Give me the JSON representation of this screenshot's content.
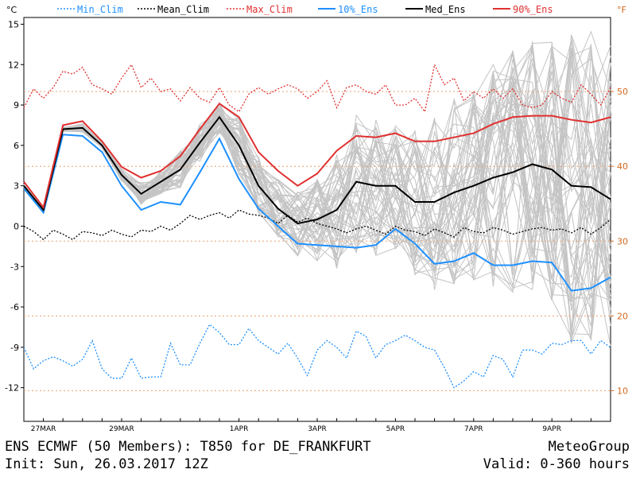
{
  "chart_data": {
    "type": "line",
    "title": "ENS ECMWF (50 Members): T850 for DE_FRANKFURT",
    "subtitle": "Init: Sun, 26.03.2017 12Z",
    "valid": "Valid: 0-360 hours",
    "brand": "MeteoGroup",
    "y_unit_left": "°C",
    "y_unit_right": "°F",
    "ylim": [
      -14.5,
      15.5
    ],
    "yticks_left": [
      15,
      12,
      9,
      6,
      3,
      0,
      -3,
      -6,
      -9,
      -12
    ],
    "yticks_right": [
      50,
      40,
      30,
      20,
      10
    ],
    "x_range_hours": [
      0,
      360
    ],
    "x_step_hours": 12,
    "xticks": [
      {
        "label": "27MAR",
        "hour": 12
      },
      {
        "label": "29MAR",
        "hour": 60
      },
      {
        "label": "1APR",
        "hour": 132
      },
      {
        "label": "3APR",
        "hour": 180
      },
      {
        "label": "5APR",
        "hour": 228
      },
      {
        "label": "7APR",
        "hour": 276
      },
      {
        "label": "9APR",
        "hour": 324
      }
    ],
    "legend_position": "top",
    "series": [
      {
        "name": "Min_Clim",
        "style": "dotted",
        "color": "#1e90ff",
        "values": [
          -9.0,
          -10.6,
          -10.0,
          -9.7,
          -10.0,
          -10.4,
          -9.9,
          -8.5,
          -10.6,
          -11.3,
          -11.3,
          -9.8,
          -11.3,
          -11.2,
          -11.2,
          -8.7,
          -10.3,
          -10.3,
          -8.7,
          -7.3,
          -7.9,
          -8.8,
          -8.8,
          -7.6,
          -8.5,
          -9.0,
          -9.5,
          -8.7,
          -9.8,
          -11.1,
          -9.2,
          -8.5,
          -9.0,
          -9.8,
          -7.8,
          -8.2,
          -9.8,
          -8.8,
          -8.5,
          -8.1,
          -8.5,
          -9.0,
          -9.2,
          -10.5,
          -12.0,
          -11.5,
          -10.8,
          -11.2,
          -9.6,
          -9.9,
          -11.2,
          -9.2,
          -9.2,
          -9.5,
          -8.7,
          -8.8,
          -8.5,
          -8.5,
          -9.5,
          -8.5,
          -9.0
        ]
      },
      {
        "name": "Mean_Clim",
        "style": "dotted",
        "color": "#000000",
        "values": [
          0.0,
          -0.4,
          -1.0,
          -0.3,
          -0.6,
          -1.0,
          -0.4,
          -0.5,
          -0.7,
          -0.3,
          -0.6,
          -0.8,
          -0.3,
          -0.4,
          0.0,
          -0.3,
          0.2,
          0.8,
          0.5,
          0.8,
          1.0,
          0.6,
          1.2,
          0.9,
          0.8,
          0.6,
          0.2,
          0.8,
          0.3,
          0.6,
          0.2,
          0.0,
          -0.2,
          -0.5,
          -0.2,
          0.0,
          -0.3,
          -0.6,
          0.0,
          -0.3,
          -0.4,
          -0.7,
          -0.2,
          -0.5,
          -0.8,
          -0.1,
          -0.4,
          -0.5,
          -0.1,
          -0.3,
          -0.6,
          -0.4,
          -0.2,
          -0.1,
          -0.3,
          -0.2,
          -0.5,
          -0.1,
          -0.6,
          -0.1,
          0.5
        ]
      },
      {
        "name": "Max_Clim",
        "style": "dotted",
        "color": "#e03030",
        "values": [
          8.8,
          10.2,
          9.5,
          10.3,
          11.5,
          11.3,
          11.8,
          10.5,
          10.2,
          9.8,
          11.0,
          12.0,
          10.3,
          11.0,
          10.0,
          10.2,
          9.3,
          10.3,
          9.5,
          9.2,
          10.3,
          9.0,
          8.5,
          9.8,
          10.3,
          9.8,
          10.2,
          10.5,
          10.2,
          9.5,
          10.0,
          10.8,
          8.8,
          10.3,
          10.5,
          10.0,
          9.8,
          10.5,
          9.0,
          9.0,
          9.5,
          8.5,
          12.0,
          10.5,
          11.0,
          9.3,
          10.0,
          9.5,
          10.2,
          9.5,
          10.2,
          9.0,
          8.8,
          9.0,
          10.0,
          9.5,
          9.2,
          10.5,
          9.8,
          9.0,
          10.3
        ]
      },
      {
        "name": "10%_Ens",
        "style": "solid",
        "color": "#1e90ff",
        "values": [
          2.8,
          1.0,
          6.8,
          6.7,
          5.5,
          3.0,
          1.2,
          1.8,
          1.6,
          4.0,
          6.5,
          3.5,
          1.3,
          0.0,
          -1.3,
          -1.4,
          -1.5,
          -1.6,
          -1.4,
          -0.2,
          -1.3,
          -2.8,
          -2.6,
          -2.0,
          -2.9,
          -2.9,
          -2.6,
          -2.7,
          -4.8,
          -4.6,
          -3.8
        ]
      },
      {
        "name": "Med_Ens",
        "style": "solid",
        "color": "#000000",
        "values": [
          3.0,
          1.2,
          7.2,
          7.3,
          6.0,
          3.8,
          2.4,
          3.3,
          4.2,
          6.2,
          8.1,
          6.0,
          3.0,
          1.3,
          0.2,
          0.5,
          1.2,
          3.3,
          3.0,
          3.0,
          1.8,
          1.8,
          2.5,
          3.0,
          3.6,
          4.0,
          4.6,
          4.2,
          3.0,
          2.9,
          2.0
        ]
      },
      {
        "name": "90%_Ens",
        "style": "solid",
        "color": "#e03030",
        "values": [
          3.3,
          1.4,
          7.5,
          7.8,
          6.3,
          4.4,
          3.6,
          4.1,
          5.2,
          7.2,
          9.1,
          8.1,
          5.5,
          4.1,
          3.0,
          3.9,
          5.6,
          6.7,
          6.6,
          6.9,
          6.3,
          6.3,
          6.6,
          6.9,
          7.6,
          8.1,
          8.2,
          8.2,
          7.9,
          7.7,
          8.1
        ]
      }
    ]
  }
}
